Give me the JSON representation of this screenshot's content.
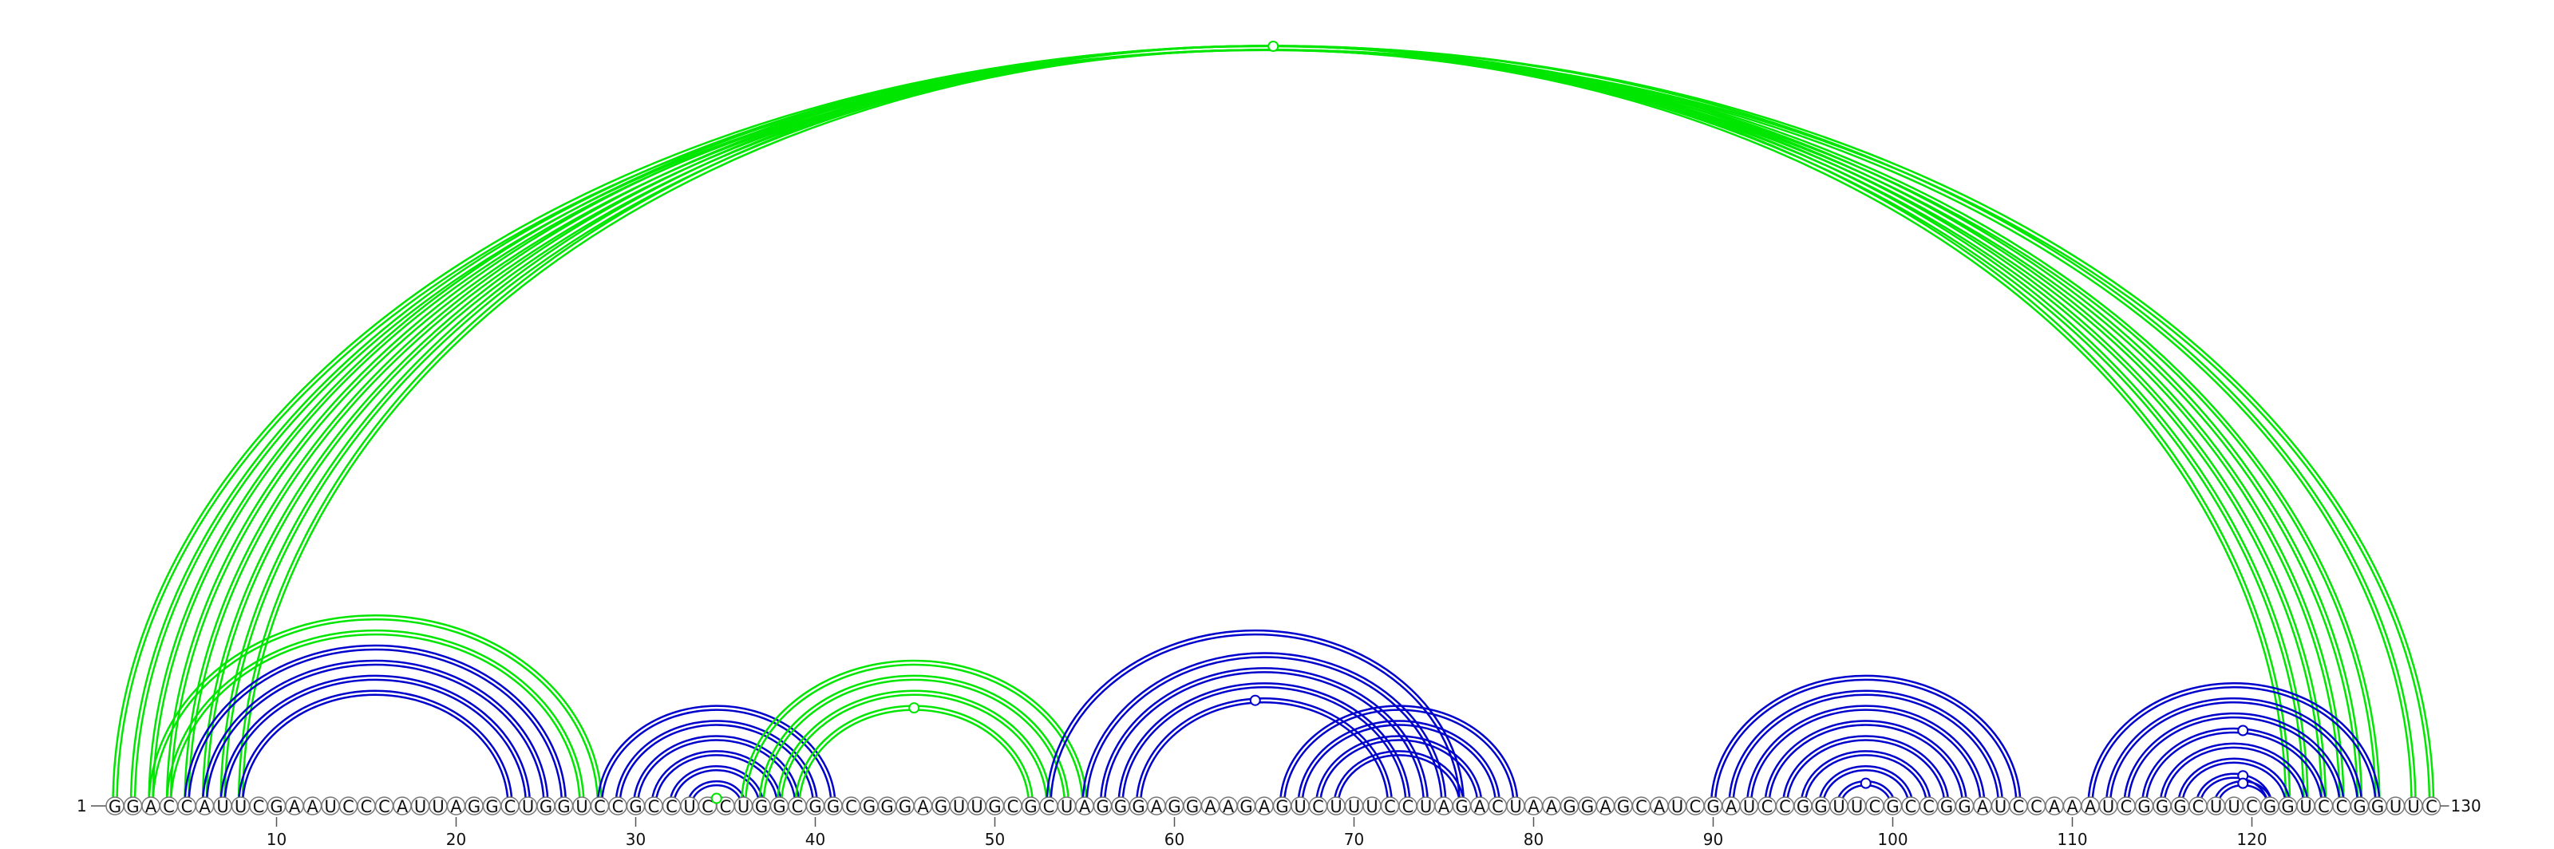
{
  "sequence": "GGACCAUUCGAAUCCCAUUAGGCUGGUCCGCCUCCUGGCGGCGGGAGUUGCGCUAGGGAGGAAGAGUCUUUCCUAGACUAAGGAGCAUCGAUCCGGUUCGCCGGAUCCAAAUCGGGCUUCGGUCCGGUUC",
  "start_label": "1",
  "end_label": "130",
  "ticks": [
    10,
    20,
    30,
    40,
    50,
    60,
    70,
    80,
    90,
    100,
    110,
    120
  ],
  "colors": {
    "green": "#00e600",
    "blue": "#0000cc"
  },
  "arc_groups": [
    {
      "color": "green",
      "pairs": [
        [
          1,
          130
        ],
        [
          2,
          129
        ],
        [
          3,
          127
        ],
        [
          4,
          126
        ],
        [
          5,
          125
        ],
        [
          6,
          124
        ],
        [
          7,
          123
        ],
        [
          8,
          122
        ]
      ],
      "marker": {
        "i": 65,
        "j": 66,
        "filled": false
      }
    },
    {
      "color": "green",
      "pairs": [
        [
          3,
          28
        ],
        [
          4,
          27
        ]
      ],
      "marker": null
    },
    {
      "color": "blue",
      "pairs": [
        [
          5,
          26
        ],
        [
          6,
          25
        ],
        [
          7,
          24
        ],
        [
          8,
          23
        ]
      ],
      "marker": null
    },
    {
      "color": "blue",
      "pairs": [
        [
          28,
          41
        ],
        [
          29,
          40
        ],
        [
          30,
          39
        ],
        [
          31,
          38
        ],
        [
          32,
          37
        ],
        [
          33,
          36
        ]
      ],
      "marker": null
    },
    {
      "color": "green",
      "pairs": [
        [
          34,
          35
        ]
      ],
      "marker": {
        "i": 34,
        "j": 35,
        "filled": true
      }
    },
    {
      "color": "green",
      "pairs": [
        [
          36,
          55
        ],
        [
          37,
          54
        ],
        [
          38,
          53
        ],
        [
          39,
          52
        ]
      ],
      "marker": {
        "i": 45,
        "j": 46,
        "filled": false
      }
    },
    {
      "color": "blue",
      "pairs": [
        [
          53,
          76
        ],
        [
          55,
          75
        ],
        [
          56,
          74
        ],
        [
          57,
          73
        ],
        [
          58,
          72
        ]
      ],
      "marker": {
        "i": 64,
        "j": 65,
        "filled": false
      }
    },
    {
      "color": "blue",
      "pairs": [
        [
          66,
          79
        ],
        [
          67,
          78
        ],
        [
          68,
          77
        ],
        [
          69,
          76
        ]
      ],
      "marker": null
    },
    {
      "color": "blue",
      "pairs": [
        [
          90,
          107
        ],
        [
          91,
          106
        ],
        [
          92,
          105
        ],
        [
          93,
          104
        ],
        [
          94,
          103
        ],
        [
          95,
          102
        ],
        [
          96,
          101
        ],
        [
          97,
          100
        ]
      ],
      "marker": {
        "i": 98,
        "j": 99,
        "filled": false
      }
    },
    {
      "color": "blue",
      "pairs": [
        [
          111,
          127
        ],
        [
          112,
          126
        ],
        [
          113,
          125
        ],
        [
          114,
          124
        ]
      ],
      "marker": {
        "i": 119,
        "j": 120,
        "filled": false
      }
    },
    {
      "color": "blue",
      "pairs": [
        [
          115,
          123
        ],
        [
          116,
          122
        ],
        [
          117,
          121
        ]
      ],
      "marker": {
        "i": 119,
        "j": 120,
        "filled": false
      }
    },
    {
      "color": "blue",
      "pairs": [
        [
          118,
          121
        ]
      ],
      "marker": {
        "i": 119,
        "j": 120,
        "filled": false
      }
    }
  ]
}
